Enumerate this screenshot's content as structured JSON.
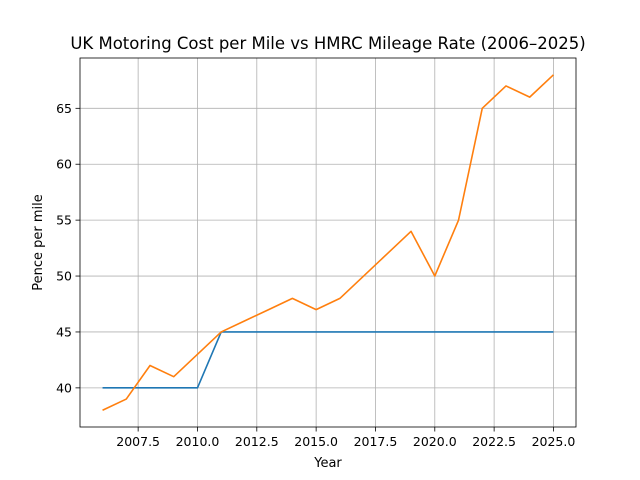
{
  "chart_data": {
    "type": "line",
    "title": "UK Motoring Cost per Mile vs HMRC Mileage Rate (2006–2025)",
    "xlabel": "Year",
    "ylabel": "Pence per mile",
    "xlim": [
      2005.05,
      2025.95
    ],
    "ylim": [
      36.5,
      69.5
    ],
    "xticks": [
      2007.5,
      2010.0,
      2012.5,
      2015.0,
      2017.5,
      2020.0,
      2022.5,
      2025.0
    ],
    "xtick_labels": [
      "2007.5",
      "2010.0",
      "2012.5",
      "2015.0",
      "2017.5",
      "2020.0",
      "2022.5",
      "2025.0"
    ],
    "yticks": [
      40,
      45,
      50,
      55,
      60,
      65
    ],
    "ytick_labels": [
      "40",
      "45",
      "50",
      "55",
      "60",
      "65"
    ],
    "grid": true,
    "legend": "none",
    "x": [
      2006,
      2007,
      2008,
      2009,
      2010,
      2011,
      2012,
      2013,
      2014,
      2015,
      2016,
      2017,
      2018,
      2019,
      2020,
      2021,
      2022,
      2023,
      2024,
      2025
    ],
    "series": [
      {
        "color": "#1f77b4",
        "values": [
          40,
          40,
          40,
          40,
          40,
          45,
          45,
          45,
          45,
          45,
          45,
          45,
          45,
          45,
          45,
          45,
          45,
          45,
          45,
          45
        ]
      },
      {
        "color": "#ff7f0e",
        "values": [
          38,
          39,
          42,
          41,
          43,
          45,
          46,
          47,
          48,
          47,
          48,
          50,
          52,
          54,
          50,
          55,
          65,
          67,
          66,
          68
        ]
      }
    ]
  }
}
